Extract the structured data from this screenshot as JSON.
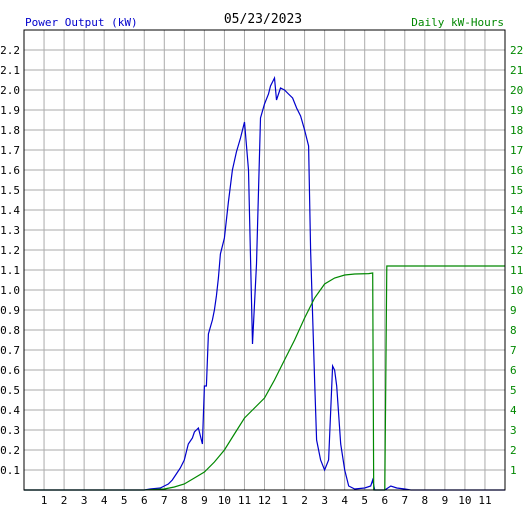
{
  "header": {
    "left_label": "Power Output (kW)",
    "date": "05/23/2023",
    "right_label": "Daily kW-Hours"
  },
  "colors": {
    "power": "#0000cc",
    "energy": "#008800",
    "grid": "#aaaaaa",
    "axis_text": "#000000",
    "right_text": "#008800",
    "left_header": "#0000cc"
  },
  "chart_data": {
    "type": "line",
    "x_ticks": [
      "1",
      "2",
      "3",
      "4",
      "5",
      "6",
      "7",
      "8",
      "9",
      "10",
      "11",
      "12",
      "1",
      "2",
      "3",
      "4",
      "5",
      "6",
      "7",
      "8",
      "9",
      "10",
      "11"
    ],
    "x_range_hours": [
      0,
      24
    ],
    "y_left_range": [
      0,
      2.3
    ],
    "y_left_ticks": [
      "0.1",
      "0.2",
      "0.3",
      "0.4",
      "0.5",
      "0.6",
      "0.7",
      "0.8",
      "0.9",
      "1.0",
      "1.1",
      "1.2",
      "1.3",
      "1.4",
      "1.5",
      "1.6",
      "1.7",
      "1.8",
      "1.9",
      "2.0",
      "2.1",
      "2.2"
    ],
    "y_right_range": [
      0,
      23
    ],
    "y_right_ticks": [
      "1",
      "2",
      "3",
      "4",
      "5",
      "6",
      "7",
      "8",
      "9",
      "10",
      "11",
      "12",
      "13",
      "14",
      "15",
      "16",
      "17",
      "18",
      "19",
      "20",
      "21",
      "22"
    ],
    "grid": true,
    "series": [
      {
        "name": "Power Output (kW)",
        "axis": "left",
        "points": [
          [
            0,
            0
          ],
          [
            6.0,
            0
          ],
          [
            6.3,
            0.005
          ],
          [
            6.8,
            0.01
          ],
          [
            7.0,
            0.02
          ],
          [
            7.2,
            0.03
          ],
          [
            7.4,
            0.05
          ],
          [
            7.6,
            0.08
          ],
          [
            7.8,
            0.11
          ],
          [
            8.0,
            0.15
          ],
          [
            8.1,
            0.19
          ],
          [
            8.2,
            0.23
          ],
          [
            8.4,
            0.26
          ],
          [
            8.5,
            0.29
          ],
          [
            8.7,
            0.31
          ],
          [
            8.8,
            0.27
          ],
          [
            8.9,
            0.23
          ],
          [
            9.0,
            0.52
          ],
          [
            9.1,
            0.52
          ],
          [
            9.2,
            0.78
          ],
          [
            9.4,
            0.85
          ],
          [
            9.5,
            0.9
          ],
          [
            9.6,
            0.97
          ],
          [
            9.7,
            1.06
          ],
          [
            9.8,
            1.18
          ],
          [
            10.0,
            1.26
          ],
          [
            10.2,
            1.44
          ],
          [
            10.4,
            1.6
          ],
          [
            10.6,
            1.69
          ],
          [
            10.8,
            1.76
          ],
          [
            11.0,
            1.84
          ],
          [
            11.2,
            1.6
          ],
          [
            11.4,
            0.73
          ],
          [
            11.6,
            1.13
          ],
          [
            11.8,
            1.86
          ],
          [
            12.0,
            1.93
          ],
          [
            12.2,
            1.98
          ],
          [
            12.3,
            2.02
          ],
          [
            12.5,
            2.06
          ],
          [
            12.6,
            1.95
          ],
          [
            12.8,
            2.01
          ],
          [
            13.0,
            2.0
          ],
          [
            13.2,
            1.98
          ],
          [
            13.4,
            1.96
          ],
          [
            13.6,
            1.91
          ],
          [
            13.8,
            1.87
          ],
          [
            14.0,
            1.8
          ],
          [
            14.2,
            1.72
          ],
          [
            14.3,
            1.2
          ],
          [
            14.5,
            0.55
          ],
          [
            14.6,
            0.25
          ],
          [
            14.8,
            0.15
          ],
          [
            15.0,
            0.1
          ],
          [
            15.2,
            0.15
          ],
          [
            15.4,
            0.62
          ],
          [
            15.5,
            0.6
          ],
          [
            15.6,
            0.52
          ],
          [
            15.8,
            0.23
          ],
          [
            16.0,
            0.1
          ],
          [
            16.2,
            0.02
          ],
          [
            16.5,
            0.005
          ],
          [
            17.0,
            0.01
          ],
          [
            17.3,
            0.02
          ],
          [
            17.4,
            0.05
          ],
          [
            17.5,
            0.0
          ],
          [
            18.0,
            0.0
          ],
          [
            18.3,
            0.02
          ],
          [
            18.6,
            0.01
          ],
          [
            19.0,
            0.005
          ],
          [
            19.3,
            0.0
          ],
          [
            24,
            0
          ]
        ]
      },
      {
        "name": "Daily kW-Hours",
        "axis": "right",
        "points": [
          [
            0,
            0
          ],
          [
            6.0,
            0
          ],
          [
            7.0,
            0.05
          ],
          [
            7.5,
            0.15
          ],
          [
            8.0,
            0.3
          ],
          [
            8.5,
            0.6
          ],
          [
            9.0,
            0.9
          ],
          [
            9.5,
            1.4
          ],
          [
            10.0,
            2.0
          ],
          [
            10.5,
            2.8
          ],
          [
            11.0,
            3.6
          ],
          [
            11.5,
            4.1
          ],
          [
            12.0,
            4.6
          ],
          [
            12.5,
            5.5
          ],
          [
            13.0,
            6.5
          ],
          [
            13.5,
            7.5
          ],
          [
            14.0,
            8.6
          ],
          [
            14.5,
            9.6
          ],
          [
            15.0,
            10.3
          ],
          [
            15.5,
            10.6
          ],
          [
            16.0,
            10.75
          ],
          [
            16.5,
            10.8
          ],
          [
            17.2,
            10.82
          ],
          [
            17.4,
            10.85
          ],
          [
            17.45,
            0
          ],
          [
            18.0,
            0
          ],
          [
            18.1,
            11.2
          ],
          [
            24,
            11.2
          ]
        ]
      }
    ]
  }
}
